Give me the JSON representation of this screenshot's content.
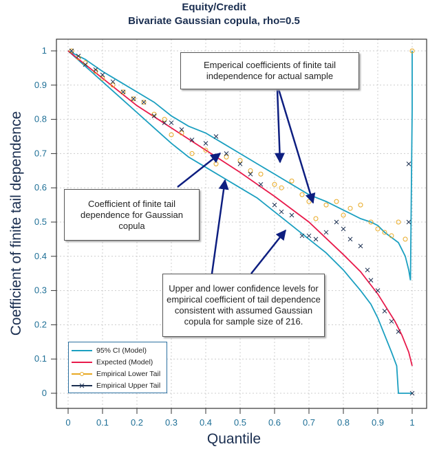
{
  "chart_data": {
    "type": "line",
    "title": "Equity/Credit",
    "subtitle": "Bivariate Gaussian copula, rho=0.5",
    "xlabel": "Quantile",
    "ylabel": "Coefficient of finite tail dependence",
    "xlim": [
      0,
      1
    ],
    "ylim": [
      0,
      1
    ],
    "xticks": [
      "0",
      "0.1",
      "0.2",
      "0.3",
      "0.4",
      "0.5",
      "0.6",
      "0.7",
      "0.8",
      "0.9",
      "1"
    ],
    "yticks": [
      "0",
      "0.1",
      "0.2",
      "0.3",
      "0.4",
      "0.5",
      "0.6",
      "0.7",
      "0.8",
      "0.9",
      "1"
    ],
    "grid": true,
    "legend_position": "bottom-left",
    "colors": {
      "ci": "#1a9fc0",
      "expected": "#e8194a",
      "lower": "#e8a820",
      "upper": "#1a2e50",
      "arrow": "#0d1e80"
    },
    "series": [
      {
        "name": "95% CI (Model)",
        "kind": "ci-upper",
        "x": [
          0,
          0.05,
          0.1,
          0.15,
          0.2,
          0.25,
          0.3,
          0.35,
          0.4,
          0.45,
          0.5,
          0.55,
          0.6,
          0.65,
          0.7,
          0.75,
          0.8,
          0.85,
          0.88,
          0.9,
          0.92,
          0.94,
          0.96,
          0.97,
          0.98,
          0.99,
          0.995,
          1,
          1
        ],
        "y": [
          1,
          0.975,
          0.94,
          0.91,
          0.88,
          0.85,
          0.81,
          0.78,
          0.76,
          0.73,
          0.7,
          0.67,
          0.64,
          0.61,
          0.58,
          0.56,
          0.535,
          0.51,
          0.5,
          0.49,
          0.47,
          0.455,
          0.44,
          0.42,
          0.4,
          0.36,
          0.33,
          0.83,
          1
        ]
      },
      {
        "name": "95% CI (Model)",
        "kind": "ci-lower",
        "x": [
          0,
          0.05,
          0.1,
          0.15,
          0.2,
          0.25,
          0.3,
          0.35,
          0.4,
          0.45,
          0.5,
          0.55,
          0.6,
          0.65,
          0.7,
          0.75,
          0.8,
          0.85,
          0.88,
          0.9,
          0.92,
          0.94,
          0.955,
          0.96,
          1
        ],
        "y": [
          1,
          0.955,
          0.91,
          0.865,
          0.82,
          0.775,
          0.73,
          0.69,
          0.66,
          0.63,
          0.6,
          0.57,
          0.53,
          0.49,
          0.45,
          0.41,
          0.36,
          0.3,
          0.26,
          0.22,
          0.17,
          0.12,
          0.08,
          0,
          0
        ]
      },
      {
        "name": "Expected (Model)",
        "kind": "expected",
        "x": [
          0,
          0.1,
          0.2,
          0.3,
          0.4,
          0.5,
          0.6,
          0.7,
          0.8,
          0.85,
          0.9,
          0.95,
          0.97,
          0.99,
          1
        ],
        "y": [
          1,
          0.92,
          0.84,
          0.775,
          0.71,
          0.645,
          0.575,
          0.5,
          0.405,
          0.355,
          0.29,
          0.21,
          0.17,
          0.12,
          0.08
        ]
      },
      {
        "name": "Empirical Lower Tail",
        "kind": "lower",
        "x": [
          0.01,
          0.03,
          0.05,
          0.08,
          0.1,
          0.13,
          0.16,
          0.19,
          0.22,
          0.25,
          0.28,
          0.3,
          0.33,
          0.36,
          0.4,
          0.43,
          0.46,
          0.5,
          0.53,
          0.56,
          0.6,
          0.62,
          0.65,
          0.68,
          0.7,
          0.72,
          0.75,
          0.78,
          0.8,
          0.82,
          0.85,
          0.88,
          0.9,
          0.92,
          0.94,
          0.96,
          0.98,
          1
        ],
        "y": [
          1,
          0.98,
          0.965,
          0.94,
          0.92,
          0.9,
          0.88,
          0.86,
          0.85,
          0.815,
          0.8,
          0.755,
          0.76,
          0.7,
          0.71,
          0.67,
          0.69,
          0.68,
          0.65,
          0.64,
          0.61,
          0.6,
          0.62,
          0.58,
          0.56,
          0.51,
          0.55,
          0.56,
          0.52,
          0.54,
          0.55,
          0.5,
          0.48,
          0.47,
          0.46,
          0.5,
          0.45,
          1
        ]
      },
      {
        "name": "Empirical Upper Tail",
        "kind": "upper",
        "x": [
          0.01,
          0.03,
          0.05,
          0.08,
          0.1,
          0.13,
          0.16,
          0.19,
          0.22,
          0.25,
          0.28,
          0.3,
          0.33,
          0.36,
          0.4,
          0.43,
          0.46,
          0.5,
          0.53,
          0.56,
          0.6,
          0.62,
          0.65,
          0.68,
          0.7,
          0.72,
          0.75,
          0.78,
          0.8,
          0.82,
          0.85,
          0.87,
          0.88,
          0.9,
          0.92,
          0.94,
          0.96,
          0.99,
          0.99,
          1
        ],
        "y": [
          1,
          0.985,
          0.96,
          0.945,
          0.93,
          0.91,
          0.88,
          0.86,
          0.85,
          0.81,
          0.79,
          0.79,
          0.77,
          0.74,
          0.73,
          0.75,
          0.7,
          0.67,
          0.64,
          0.61,
          0.55,
          0.53,
          0.52,
          0.46,
          0.46,
          0.45,
          0.47,
          0.5,
          0.48,
          0.45,
          0.43,
          0.36,
          0.33,
          0.3,
          0.24,
          0.21,
          0.18,
          0.67,
          0.5,
          0
        ]
      }
    ],
    "annotations": [
      "Emperical coefficients of finite tail independence for actual sample",
      "Coefficient of finite tail dependence for Gaussian copula",
      "Upper and lower confidence levels for empirical coefficient of tail dependence consistent with assumed Gaussian copula for sample size of 216."
    ]
  }
}
